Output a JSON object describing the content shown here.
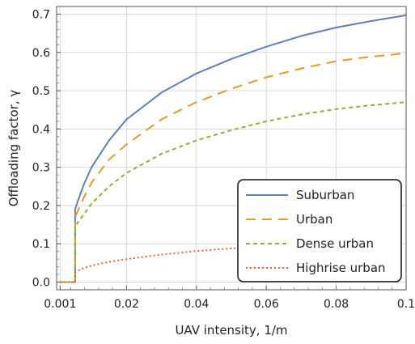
{
  "chart_data": {
    "type": "line",
    "title": "",
    "xlabel": "UAV intensity, 1/m",
    "ylabel": "Offloading factor, γ",
    "xlim": [
      0.0,
      0.1
    ],
    "ylim": [
      -0.02,
      0.72
    ],
    "x_ticks": [
      {
        "value": 0.001,
        "label": "0.001"
      },
      {
        "value": 0.02,
        "label": "0.02"
      },
      {
        "value": 0.04,
        "label": "0.04"
      },
      {
        "value": 0.06,
        "label": "0.06"
      },
      {
        "value": 0.08,
        "label": "0.08"
      },
      {
        "value": 0.1,
        "label": "0.1"
      }
    ],
    "y_ticks": [
      {
        "value": 0.0,
        "label": "0.0"
      },
      {
        "value": 0.1,
        "label": "0.1"
      },
      {
        "value": 0.2,
        "label": "0.2"
      },
      {
        "value": 0.3,
        "label": "0.3"
      },
      {
        "value": 0.4,
        "label": "0.4"
      },
      {
        "value": 0.5,
        "label": "0.5"
      },
      {
        "value": 0.6,
        "label": "0.6"
      },
      {
        "value": 0.7,
        "label": "0.7"
      }
    ],
    "grid": true,
    "legend_position": "bottom-right",
    "series": [
      {
        "name": "Suburban",
        "color": "#5e81b5",
        "dash": "solid",
        "x": [
          0.001,
          0.0053,
          0.0053,
          0.006,
          0.008,
          0.01,
          0.015,
          0.02,
          0.03,
          0.04,
          0.05,
          0.06,
          0.07,
          0.08,
          0.09,
          0.1
        ],
        "y": [
          0.0,
          0.0,
          0.19,
          0.21,
          0.26,
          0.3,
          0.37,
          0.425,
          0.495,
          0.545,
          0.583,
          0.615,
          0.643,
          0.665,
          0.682,
          0.697
        ]
      },
      {
        "name": "Urban",
        "color": "#e19c24",
        "dash": "long-dash",
        "x": [
          0.001,
          0.0053,
          0.0053,
          0.006,
          0.008,
          0.01,
          0.015,
          0.02,
          0.03,
          0.04,
          0.05,
          0.06,
          0.07,
          0.08,
          0.09,
          0.1
        ],
        "y": [
          0.0,
          0.0,
          0.17,
          0.185,
          0.225,
          0.26,
          0.32,
          0.36,
          0.425,
          0.47,
          0.505,
          0.535,
          0.558,
          0.577,
          0.589,
          0.598
        ]
      },
      {
        "name": "Dense urban",
        "color": "#8fb032",
        "dash": "short-dash",
        "x": [
          0.001,
          0.0053,
          0.0053,
          0.006,
          0.008,
          0.01,
          0.015,
          0.02,
          0.03,
          0.04,
          0.05,
          0.06,
          0.07,
          0.08,
          0.09,
          0.1
        ],
        "y": [
          0.0,
          0.0,
          0.14,
          0.155,
          0.18,
          0.205,
          0.25,
          0.285,
          0.335,
          0.37,
          0.397,
          0.42,
          0.438,
          0.452,
          0.462,
          0.47
        ]
      },
      {
        "name": "Highrise urban",
        "color": "#eb6235",
        "dash": "dotted",
        "x": [
          0.001,
          0.0053,
          0.0053,
          0.006,
          0.008,
          0.01,
          0.015,
          0.02,
          0.03,
          0.04,
          0.05,
          0.06,
          0.07,
          0.08
        ],
        "y": [
          0.0,
          0.0,
          0.025,
          0.03,
          0.037,
          0.043,
          0.053,
          0.06,
          0.072,
          0.081,
          0.088,
          0.093,
          0.097,
          0.1
        ]
      }
    ]
  }
}
